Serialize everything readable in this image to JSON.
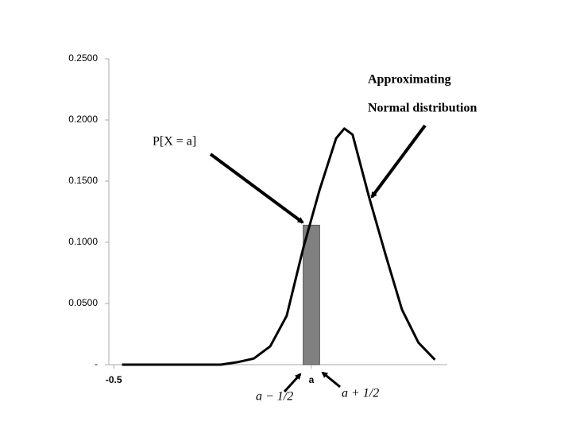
{
  "chart_data": {
    "type": "line",
    "x": [
      0,
      1,
      2,
      3,
      4,
      5,
      6,
      7,
      8,
      9,
      10,
      11,
      12,
      13,
      13.5,
      14,
      15,
      16,
      17,
      18,
      19
    ],
    "series": [
      {
        "color": "#000000",
        "values": [
          0,
          0,
          0,
          0,
          0,
          0,
          0,
          0.002,
          0.005,
          0.015,
          0.04,
          0.095,
          0.143,
          0.185,
          0.193,
          0.188,
          0.137,
          0.09,
          0.045,
          0.018,
          0.004
        ]
      }
    ],
    "bar": {
      "x_edges": [
        11,
        12
      ],
      "value": 0.114,
      "color": "#808080"
    },
    "xlim": [
      -0.8,
      19.75
    ],
    "xticks": [
      {
        "value": -0.5,
        "label": "-0.5"
      },
      {
        "value": 11.5,
        "label": "a"
      }
    ],
    "ylim": [
      0,
      0.25
    ],
    "yticks": [
      {
        "value": 0,
        "label": "-"
      },
      {
        "value": 0.05,
        "label": "0.0500"
      },
      {
        "value": 0.1,
        "label": "0.1000"
      },
      {
        "value": 0.15,
        "label": "0.1500"
      },
      {
        "value": 0.2,
        "label": "0.2000"
      },
      {
        "value": 0.25,
        "label": "0.2500"
      }
    ],
    "annotations": [
      "Approximating",
      "Normal distribution",
      "P[X = a]",
      "a − 1/2",
      "a + 1/2"
    ]
  }
}
